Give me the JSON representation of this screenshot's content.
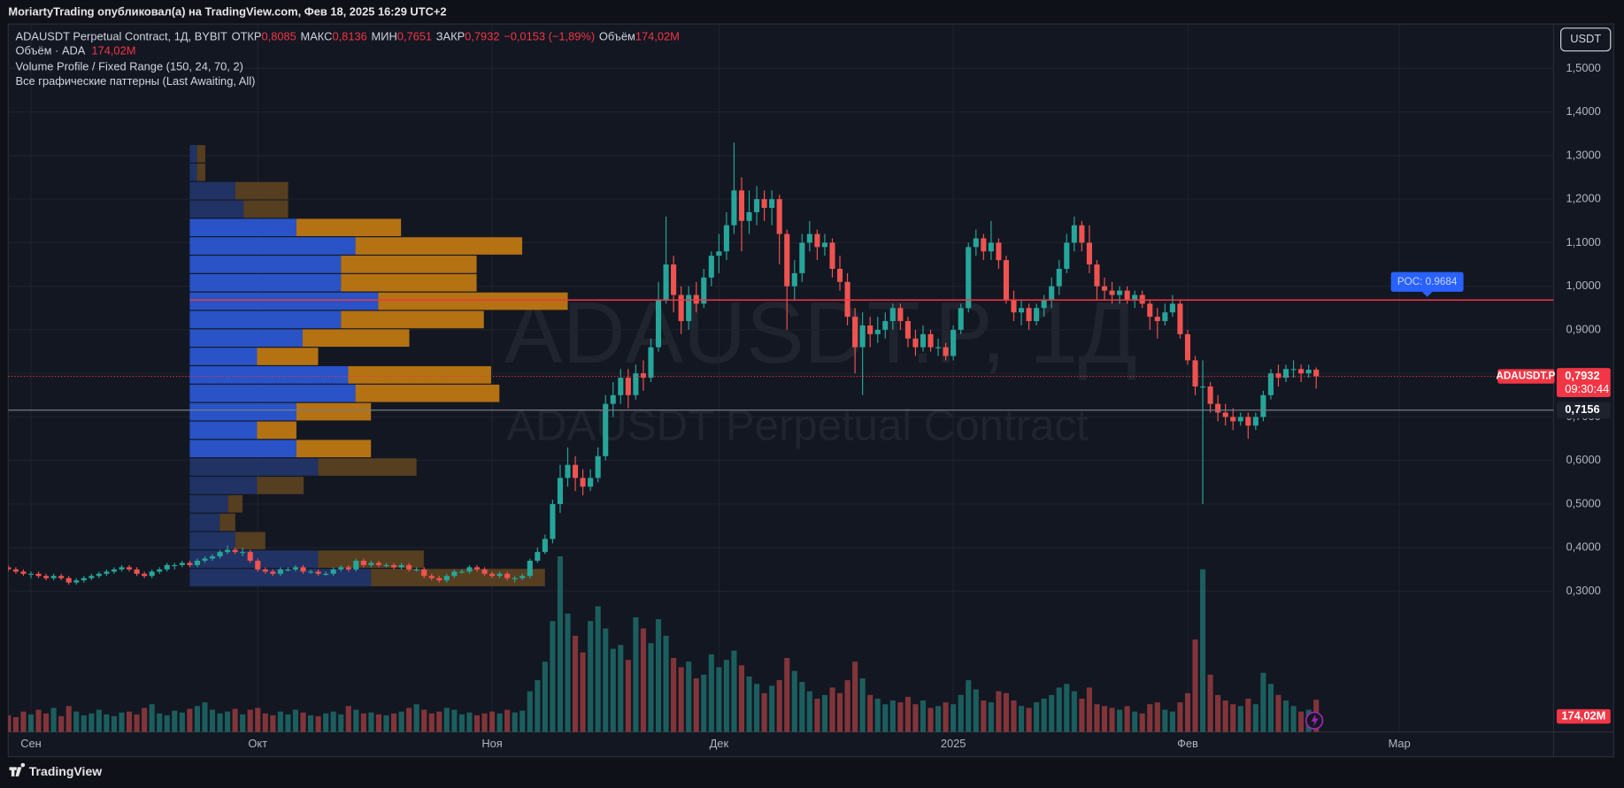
{
  "header": {
    "published": "MoriartyTrading опубликовал(а) на TradingView.com, Фев 18, 2025 16:29 UTC+2"
  },
  "toolbar": {
    "currency": "USDT"
  },
  "footer": {
    "brand": "TradingView"
  },
  "chart_data": {
    "type": "candlestick",
    "legend": {
      "symbol": "ADAUSDT Perpetual Contract, 1Д, BYBIT",
      "fields": [
        {
          "name": "ОТКР",
          "value": "0,8085"
        },
        {
          "name": "МАКС",
          "value": "0,8136"
        },
        {
          "name": "МИН",
          "value": "0,7651"
        },
        {
          "name": "ЗАКР",
          "value": "0,7932"
        }
      ],
      "change": "−0,0153 (−1,89%)",
      "volume_name": "Объём"
    },
    "indicators": [
      "Volume Profile / Fixed Range (150, 24, 70, 2)",
      "Все графические паттерны (Last Awaiting, All)"
    ],
    "watermark": {
      "title": "ADAUSDT.P, 1Д",
      "subtitle": "ADAUSDT Perpetual Contract"
    },
    "up_color": "#26a69a",
    "down_color": "#ef5350",
    "xlim": [
      0,
      204.4
    ],
    "xticks": [
      {
        "value": 3,
        "label": "Сен"
      },
      {
        "value": 33,
        "label": "Окт"
      },
      {
        "value": 64,
        "label": "Ноя"
      },
      {
        "value": 94,
        "label": "Дек"
      },
      {
        "value": 125,
        "label": "2025"
      },
      {
        "value": 156,
        "label": "Фев"
      },
      {
        "value": 184,
        "label": "Мар"
      }
    ],
    "ylim": [
      -0.023,
      1.602
    ],
    "yticks": [
      {
        "value": 0.3,
        "label": "0,3000"
      },
      {
        "value": 0.4,
        "label": "0,4000"
      },
      {
        "value": 0.5,
        "label": "0,5000"
      },
      {
        "value": 0.6,
        "label": "0,6000"
      },
      {
        "value": 0.7,
        "label": "0,7000"
      },
      {
        "value": 0.8,
        "label": "0,8000"
      },
      {
        "value": 0.9,
        "label": "0,9000"
      },
      {
        "value": 1.0,
        "label": "1,0000"
      },
      {
        "value": 1.1,
        "label": "1,1000"
      },
      {
        "value": 1.2,
        "label": "1,2000"
      },
      {
        "value": 1.3,
        "label": "1,3000"
      },
      {
        "value": 1.4,
        "label": "1,4000"
      },
      {
        "value": 1.5,
        "label": "1,5000"
      }
    ],
    "grid": true,
    "ohlc": [
      [
        0.355,
        0.36,
        0.345,
        0.35
      ],
      [
        0.35,
        0.355,
        0.34,
        0.345
      ],
      [
        0.345,
        0.35,
        0.335,
        0.34
      ],
      [
        0.34,
        0.345,
        0.33,
        0.34
      ],
      [
        0.34,
        0.345,
        0.33,
        0.335
      ],
      [
        0.335,
        0.34,
        0.325,
        0.33
      ],
      [
        0.33,
        0.34,
        0.325,
        0.335
      ],
      [
        0.335,
        0.34,
        0.325,
        0.33
      ],
      [
        0.33,
        0.335,
        0.315,
        0.32
      ],
      [
        0.32,
        0.33,
        0.315,
        0.325
      ],
      [
        0.325,
        0.335,
        0.32,
        0.33
      ],
      [
        0.33,
        0.34,
        0.325,
        0.335
      ],
      [
        0.335,
        0.345,
        0.33,
        0.34
      ],
      [
        0.34,
        0.35,
        0.335,
        0.345
      ],
      [
        0.345,
        0.355,
        0.34,
        0.35
      ],
      [
        0.35,
        0.36,
        0.345,
        0.355
      ],
      [
        0.355,
        0.36,
        0.345,
        0.35
      ],
      [
        0.35,
        0.355,
        0.335,
        0.34
      ],
      [
        0.34,
        0.345,
        0.33,
        0.335
      ],
      [
        0.335,
        0.35,
        0.33,
        0.345
      ],
      [
        0.345,
        0.355,
        0.34,
        0.35
      ],
      [
        0.35,
        0.365,
        0.345,
        0.36
      ],
      [
        0.36,
        0.365,
        0.35,
        0.36
      ],
      [
        0.36,
        0.37,
        0.355,
        0.365
      ],
      [
        0.365,
        0.37,
        0.355,
        0.36
      ],
      [
        0.36,
        0.375,
        0.355,
        0.37
      ],
      [
        0.37,
        0.38,
        0.365,
        0.375
      ],
      [
        0.375,
        0.385,
        0.37,
        0.38
      ],
      [
        0.38,
        0.395,
        0.375,
        0.39
      ],
      [
        0.39,
        0.405,
        0.385,
        0.395
      ],
      [
        0.395,
        0.4,
        0.385,
        0.39
      ],
      [
        0.39,
        0.4,
        0.38,
        0.39
      ],
      [
        0.39,
        0.395,
        0.365,
        0.37
      ],
      [
        0.37,
        0.375,
        0.345,
        0.35
      ],
      [
        0.35,
        0.355,
        0.34,
        0.345
      ],
      [
        0.345,
        0.35,
        0.335,
        0.34
      ],
      [
        0.34,
        0.355,
        0.335,
        0.35
      ],
      [
        0.35,
        0.355,
        0.345,
        0.35
      ],
      [
        0.35,
        0.36,
        0.345,
        0.355
      ],
      [
        0.355,
        0.36,
        0.34,
        0.345
      ],
      [
        0.345,
        0.35,
        0.34,
        0.345
      ],
      [
        0.345,
        0.35,
        0.335,
        0.34
      ],
      [
        0.34,
        0.345,
        0.335,
        0.34
      ],
      [
        0.34,
        0.355,
        0.335,
        0.35
      ],
      [
        0.35,
        0.36,
        0.345,
        0.355
      ],
      [
        0.355,
        0.36,
        0.345,
        0.35
      ],
      [
        0.35,
        0.375,
        0.345,
        0.37
      ],
      [
        0.37,
        0.375,
        0.355,
        0.36
      ],
      [
        0.36,
        0.37,
        0.355,
        0.365
      ],
      [
        0.365,
        0.37,
        0.355,
        0.36
      ],
      [
        0.36,
        0.365,
        0.355,
        0.36
      ],
      [
        0.36,
        0.365,
        0.35,
        0.355
      ],
      [
        0.355,
        0.365,
        0.35,
        0.36
      ],
      [
        0.36,
        0.365,
        0.345,
        0.35
      ],
      [
        0.35,
        0.355,
        0.345,
        0.35
      ],
      [
        0.35,
        0.355,
        0.33,
        0.335
      ],
      [
        0.335,
        0.34,
        0.325,
        0.33
      ],
      [
        0.33,
        0.335,
        0.32,
        0.325
      ],
      [
        0.325,
        0.34,
        0.32,
        0.335
      ],
      [
        0.335,
        0.35,
        0.33,
        0.345
      ],
      [
        0.345,
        0.35,
        0.34,
        0.345
      ],
      [
        0.345,
        0.36,
        0.34,
        0.355
      ],
      [
        0.355,
        0.36,
        0.345,
        0.35
      ],
      [
        0.35,
        0.355,
        0.335,
        0.34
      ],
      [
        0.34,
        0.345,
        0.33,
        0.335
      ],
      [
        0.335,
        0.345,
        0.33,
        0.34
      ],
      [
        0.34,
        0.345,
        0.325,
        0.33
      ],
      [
        0.33,
        0.335,
        0.32,
        0.33
      ],
      [
        0.33,
        0.34,
        0.325,
        0.335
      ],
      [
        0.335,
        0.375,
        0.33,
        0.37
      ],
      [
        0.37,
        0.4,
        0.365,
        0.39
      ],
      [
        0.39,
        0.43,
        0.385,
        0.42
      ],
      [
        0.42,
        0.51,
        0.41,
        0.5
      ],
      [
        0.5,
        0.59,
        0.48,
        0.56
      ],
      [
        0.56,
        0.63,
        0.54,
        0.59
      ],
      [
        0.59,
        0.61,
        0.53,
        0.56
      ],
      [
        0.56,
        0.58,
        0.52,
        0.54
      ],
      [
        0.54,
        0.58,
        0.53,
        0.56
      ],
      [
        0.56,
        0.63,
        0.55,
        0.61
      ],
      [
        0.61,
        0.75,
        0.6,
        0.73
      ],
      [
        0.73,
        0.78,
        0.7,
        0.75
      ],
      [
        0.75,
        0.81,
        0.73,
        0.79
      ],
      [
        0.79,
        0.81,
        0.72,
        0.75
      ],
      [
        0.75,
        0.82,
        0.74,
        0.8
      ],
      [
        0.8,
        0.83,
        0.76,
        0.79
      ],
      [
        0.79,
        0.88,
        0.78,
        0.86
      ],
      [
        0.86,
        1.01,
        0.85,
        0.97
      ],
      [
        0.97,
        1.16,
        0.96,
        1.05
      ],
      [
        1.05,
        1.07,
        0.94,
        0.98
      ],
      [
        0.98,
        1.0,
        0.89,
        0.92
      ],
      [
        0.92,
        1.0,
        0.9,
        0.98
      ],
      [
        0.98,
        1.01,
        0.94,
        0.96
      ],
      [
        0.96,
        1.04,
        0.95,
        1.02
      ],
      [
        1.02,
        1.08,
        1.0,
        1.07
      ],
      [
        1.07,
        1.12,
        1.03,
        1.08
      ],
      [
        1.08,
        1.17,
        1.06,
        1.14
      ],
      [
        1.14,
        1.33,
        1.12,
        1.22
      ],
      [
        1.22,
        1.25,
        1.08,
        1.15
      ],
      [
        1.15,
        1.22,
        1.12,
        1.17
      ],
      [
        1.17,
        1.23,
        1.14,
        1.2
      ],
      [
        1.2,
        1.22,
        1.15,
        1.18
      ],
      [
        1.18,
        1.22,
        1.14,
        1.2
      ],
      [
        1.2,
        1.21,
        1.05,
        1.12
      ],
      [
        1.12,
        1.13,
        0.9,
        1.0
      ],
      [
        1.0,
        1.06,
        0.97,
        1.03
      ],
      [
        1.03,
        1.12,
        1.01,
        1.1
      ],
      [
        1.1,
        1.15,
        1.08,
        1.12
      ],
      [
        1.12,
        1.13,
        1.06,
        1.09
      ],
      [
        1.09,
        1.12,
        1.07,
        1.1
      ],
      [
        1.1,
        1.11,
        1.02,
        1.04
      ],
      [
        1.04,
        1.07,
        0.99,
        1.01
      ],
      [
        1.01,
        1.03,
        0.91,
        0.93
      ],
      [
        0.93,
        0.95,
        0.8,
        0.86
      ],
      [
        0.86,
        0.94,
        0.75,
        0.91
      ],
      [
        0.91,
        0.93,
        0.86,
        0.89
      ],
      [
        0.89,
        0.93,
        0.87,
        0.9
      ],
      [
        0.9,
        0.94,
        0.88,
        0.92
      ],
      [
        0.92,
        0.96,
        0.9,
        0.95
      ],
      [
        0.95,
        0.96,
        0.9,
        0.92
      ],
      [
        0.92,
        0.93,
        0.86,
        0.88
      ],
      [
        0.88,
        0.9,
        0.84,
        0.86
      ],
      [
        0.86,
        0.91,
        0.85,
        0.89
      ],
      [
        0.89,
        0.9,
        0.85,
        0.86
      ],
      [
        0.86,
        0.88,
        0.84,
        0.86
      ],
      [
        0.86,
        0.87,
        0.83,
        0.84
      ],
      [
        0.84,
        0.91,
        0.83,
        0.9
      ],
      [
        0.9,
        0.96,
        0.89,
        0.95
      ],
      [
        0.95,
        1.1,
        0.94,
        1.09
      ],
      [
        1.09,
        1.13,
        1.07,
        1.11
      ],
      [
        1.11,
        1.12,
        1.06,
        1.08
      ],
      [
        1.08,
        1.15,
        1.06,
        1.1
      ],
      [
        1.1,
        1.11,
        1.04,
        1.06
      ],
      [
        1.06,
        1.07,
        0.96,
        0.97
      ],
      [
        0.97,
        0.99,
        0.92,
        0.94
      ],
      [
        0.94,
        0.97,
        0.91,
        0.95
      ],
      [
        0.95,
        0.96,
        0.9,
        0.92
      ],
      [
        0.92,
        0.96,
        0.91,
        0.95
      ],
      [
        0.95,
        0.98,
        0.93,
        0.97
      ],
      [
        0.97,
        1.02,
        0.95,
        1.0
      ],
      [
        1.0,
        1.06,
        0.98,
        1.04
      ],
      [
        1.04,
        1.12,
        1.03,
        1.1
      ],
      [
        1.1,
        1.16,
        1.08,
        1.14
      ],
      [
        1.14,
        1.15,
        1.08,
        1.1
      ],
      [
        1.1,
        1.14,
        1.03,
        1.05
      ],
      [
        1.05,
        1.06,
        0.97,
        1.0
      ],
      [
        1.0,
        1.02,
        0.97,
        0.99
      ],
      [
        0.99,
        1.01,
        0.96,
        0.98
      ],
      [
        0.98,
        1.0,
        0.96,
        0.99
      ],
      [
        0.99,
        1.0,
        0.96,
        0.97
      ],
      [
        0.97,
        0.99,
        0.95,
        0.98
      ],
      [
        0.98,
        0.99,
        0.95,
        0.96
      ],
      [
        0.96,
        0.97,
        0.9,
        0.93
      ],
      [
        0.93,
        0.95,
        0.88,
        0.92
      ],
      [
        0.92,
        0.96,
        0.91,
        0.94
      ],
      [
        0.94,
        0.98,
        0.93,
        0.96
      ],
      [
        0.96,
        0.97,
        0.88,
        0.89
      ],
      [
        0.89,
        0.9,
        0.82,
        0.83
      ],
      [
        0.83,
        0.84,
        0.75,
        0.77
      ],
      [
        0.77,
        0.83,
        0.5,
        0.77
      ],
      [
        0.77,
        0.78,
        0.71,
        0.73
      ],
      [
        0.73,
        0.75,
        0.69,
        0.71
      ],
      [
        0.71,
        0.73,
        0.68,
        0.7
      ],
      [
        0.7,
        0.72,
        0.67,
        0.69
      ],
      [
        0.69,
        0.71,
        0.68,
        0.7
      ],
      [
        0.7,
        0.71,
        0.65,
        0.68
      ],
      [
        0.68,
        0.71,
        0.67,
        0.7
      ],
      [
        0.7,
        0.76,
        0.69,
        0.75
      ],
      [
        0.75,
        0.81,
        0.74,
        0.8
      ],
      [
        0.8,
        0.82,
        0.77,
        0.79
      ],
      [
        0.79,
        0.82,
        0.78,
        0.81
      ],
      [
        0.81,
        0.83,
        0.79,
        0.81
      ],
      [
        0.81,
        0.82,
        0.78,
        0.8
      ],
      [
        0.8,
        0.82,
        0.79,
        0.8085
      ],
      [
        0.8085,
        0.8136,
        0.7651,
        0.7932
      ]
    ],
    "y2lim": [
      0,
      3830
    ],
    "volume": {
      "title": "Объём · ADA",
      "axis": "y2",
      "last_label": "174,02M",
      "values": [
        90,
        80,
        110,
        95,
        120,
        100,
        130,
        85,
        140,
        110,
        90,
        100,
        120,
        95,
        85,
        105,
        110,
        95,
        130,
        150,
        100,
        90,
        115,
        105,
        125,
        140,
        160,
        120,
        100,
        110,
        125,
        95,
        120,
        130,
        100,
        90,
        110,
        95,
        120,
        105,
        90,
        85,
        100,
        110,
        95,
        140,
        120,
        100,
        105,
        95,
        90,
        100,
        110,
        130,
        150,
        120,
        100,
        110,
        130,
        120,
        95,
        105,
        90,
        100,
        110,
        100,
        120,
        105,
        115,
        220,
        280,
        380,
        600,
        950,
        640,
        520,
        430,
        600,
        680,
        560,
        450,
        470,
        390,
        620,
        560,
        480,
        610,
        520,
        400,
        350,
        380,
        290,
        310,
        420,
        350,
        390,
        440,
        360,
        300,
        260,
        210,
        250,
        280,
        400,
        330,
        270,
        220,
        180,
        200,
        240,
        210,
        280,
        380,
        290,
        200,
        180,
        150,
        170,
        160,
        190,
        150,
        170,
        130,
        140,
        160,
        150,
        200,
        280,
        230,
        170,
        160,
        220,
        210,
        170,
        140,
        130,
        160,
        180,
        200,
        240,
        260,
        220,
        180,
        240,
        150,
        140,
        130,
        120,
        140,
        110,
        100,
        150,
        160,
        120,
        110,
        160,
        210,
        500,
        880,
        310,
        200,
        170,
        150,
        140,
        180,
        150,
        320,
        260,
        200,
        170,
        140,
        110,
        120,
        174.02
      ]
    },
    "volume_profile": {
      "start": 24,
      "range": [
        0.309,
        1.324
      ],
      "value_area": [
        0.605,
        1.155
      ],
      "up": [
        175,
        124,
        44,
        29,
        37,
        65,
        124,
        103,
        65,
        103,
        160,
        153,
        65,
        109,
        146,
        182,
        146,
        146,
        160,
        103,
        52,
        44,
        7,
        7
      ],
      "down": [
        168,
        102,
        29,
        15,
        14,
        45,
        95,
        72,
        38,
        72,
        139,
        138,
        59,
        103,
        138,
        183,
        131,
        131,
        161,
        101,
        43,
        51,
        8,
        8
      ]
    },
    "poc": {
      "value": 0.9684,
      "label": "POC: 0.9684"
    },
    "hline": {
      "value": 0.7156,
      "label": "0,7156"
    },
    "last_price": {
      "value": 0.7932,
      "label": "0,7932",
      "symbol": "ADAUSDT.P",
      "countdown": "09:30:44"
    }
  }
}
